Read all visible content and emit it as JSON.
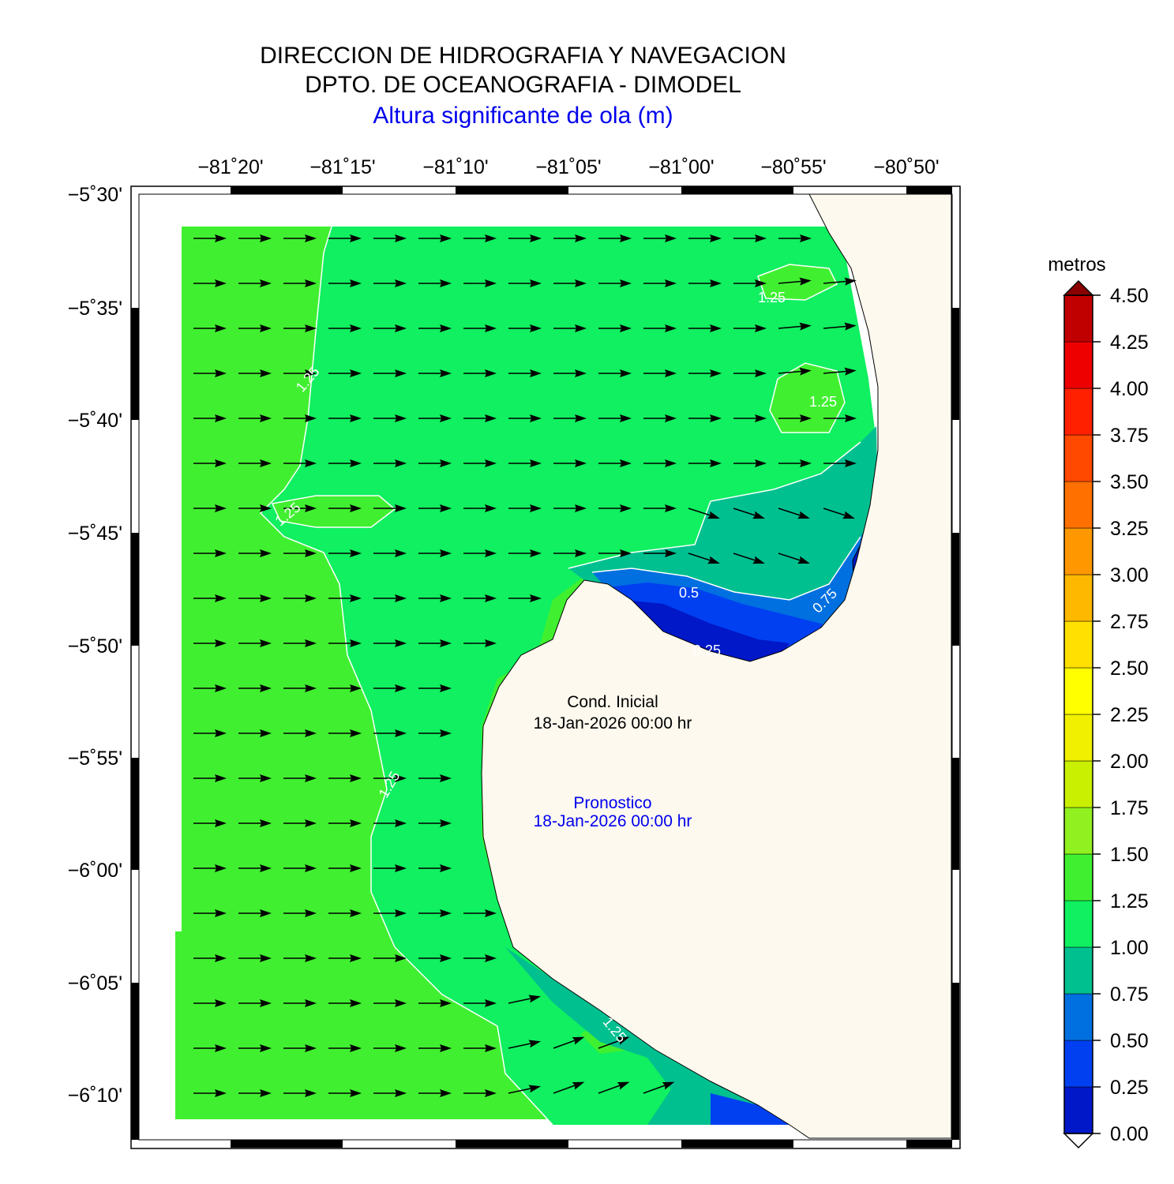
{
  "header": {
    "line1": "DIRECCION DE HIDROGRAFIA Y NAVEGACION",
    "line2": "DPTO. DE OCEANOGRAFIA - DIMODEL",
    "line3": "Altura significante de ola (m)"
  },
  "axes": {
    "lon_labels": [
      "−81˚20'",
      "−81˚15'",
      "−81˚10'",
      "−81˚05'",
      "−81˚00'",
      "−80˚55'",
      "−80˚50'"
    ],
    "lat_labels": [
      "−5˚30'",
      "−5˚35'",
      "−5˚40'",
      "−5˚45'",
      "−5˚50'",
      "−5˚55'",
      "−6˚00'",
      "−6˚05'",
      "−6˚10'"
    ]
  },
  "annotations": {
    "initial_label": "Cond. Inicial",
    "initial_time": "18-Jan-2026 00:00 hr",
    "forecast_label": "Pronostico",
    "forecast_time": "18-Jan-2026 00:00 hr"
  },
  "contour_labels": [
    "1.25",
    "1.25",
    "1.25",
    "1.25",
    "1.25",
    "0.5",
    "0.75",
    "0.25",
    "1.25"
  ],
  "colorbar": {
    "title": "metros",
    "ticks": [
      "0.00",
      "0.25",
      "0.50",
      "0.75",
      "1.00",
      "1.25",
      "1.50",
      "1.75",
      "2.00",
      "2.25",
      "2.50",
      "2.75",
      "3.00",
      "3.25",
      "3.50",
      "3.75",
      "4.00",
      "4.25",
      "4.50"
    ],
    "colors": [
      "#0018c8",
      "#0040f0",
      "#0070e0",
      "#00c090",
      "#10f060",
      "#40f030",
      "#90f020",
      "#c8f000",
      "#f0f000",
      "#ffff00",
      "#ffe000",
      "#ffb800",
      "#ff9800",
      "#ff7000",
      "#ff4800",
      "#ff2000",
      "#ee0000",
      "#c00000"
    ],
    "under_color": "#ffffff",
    "over_color": "#8b0000"
  },
  "colors": {
    "land": "#fdf9ee",
    "sea_high": "#40f030",
    "sea_mid": "#10f060"
  }
}
